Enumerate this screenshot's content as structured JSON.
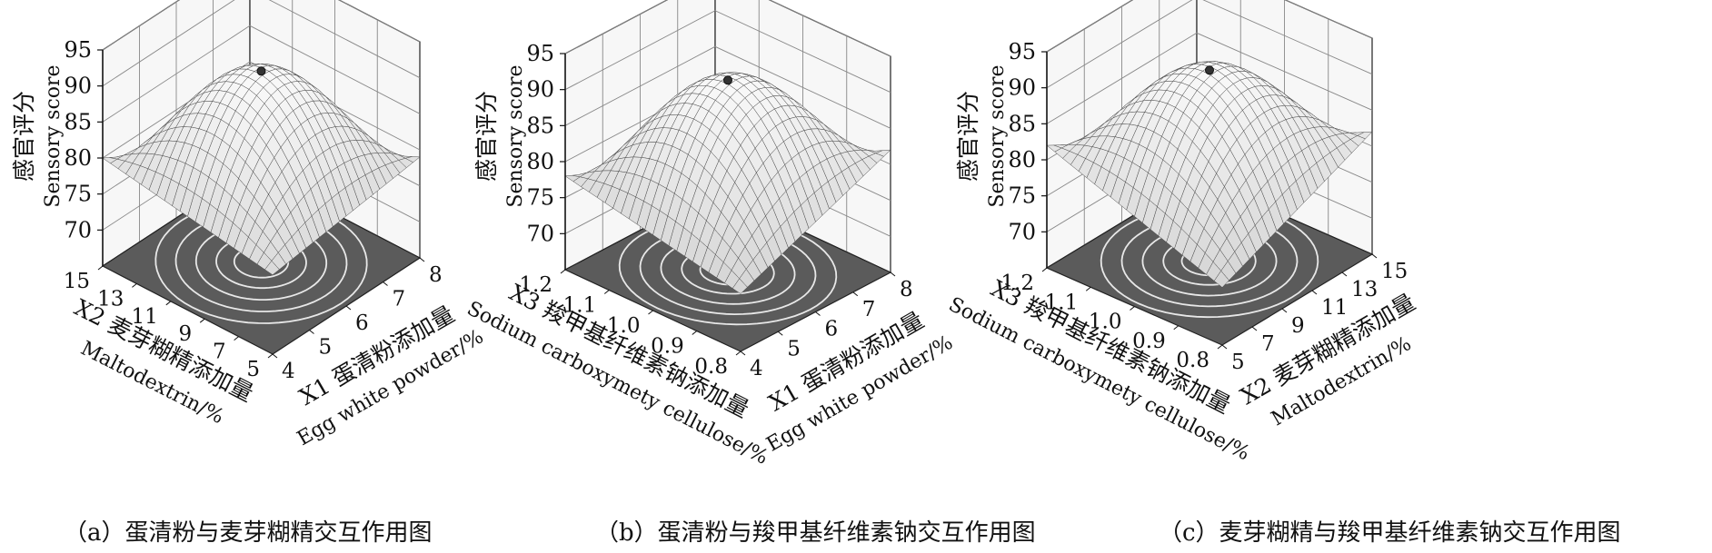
{
  "figure": {
    "captions": [
      "（a）蛋清粉与麦芽糊精交互作用图",
      "（b）蛋清粉与羧甲基纤维素钠交互作用图",
      "（c）麦芽糊精与羧甲基纤维素钠交互作用图"
    ]
  },
  "chart_data": [
    {
      "type": "surface",
      "panel": "a",
      "zlabel_cn": "感官评分",
      "zlabel_en": "Sensory score",
      "zticks": [
        70,
        75,
        80,
        85,
        90,
        95
      ],
      "zlim": [
        65,
        95
      ],
      "left_axis": {
        "var": "X2",
        "label_cn": "麦芽糊精添加量",
        "label_en": "Maltodextrin/%",
        "ticks": [
          "5",
          "7",
          "9",
          "11",
          "13",
          "15"
        ],
        "range": [
          5,
          15
        ]
      },
      "right_axis": {
        "var": "X1",
        "label_cn": "蛋清粉添加量",
        "label_en": "Egg white powder/%",
        "ticks": [
          "4",
          "5",
          "6",
          "7",
          "8"
        ],
        "range": [
          4,
          8
        ]
      },
      "peak": 92,
      "corner_values": [
        76,
        80,
        79,
        68
      ]
    },
    {
      "type": "surface",
      "panel": "b",
      "zlabel_cn": "感官评分",
      "zlabel_en": "Sensory score",
      "zticks": [
        70,
        75,
        80,
        85,
        90,
        95
      ],
      "zlim": [
        65,
        95
      ],
      "left_axis": {
        "var": "X3",
        "label_cn": "羧甲基纤维素钠添加量",
        "label_en": "Sodium carboxymety cellulose/%",
        "ticks": [
          "0.8",
          "0.9",
          "1.0",
          "1.1",
          "1.2"
        ],
        "range": [
          0.8,
          1.2
        ]
      },
      "right_axis": {
        "var": "X1",
        "label_cn": "蛋清粉添加量",
        "label_en": "Egg white powder/%",
        "ticks": [
          "4",
          "5",
          "6",
          "7",
          "8"
        ],
        "range": [
          4,
          8
        ]
      },
      "peak": 92,
      "corner_values": [
        73,
        78,
        82,
        69
      ]
    },
    {
      "type": "surface",
      "panel": "c",
      "zlabel_cn": "感官评分",
      "zlabel_en": "Sensory score",
      "zticks": [
        70,
        75,
        80,
        85,
        90,
        95
      ],
      "zlim": [
        65,
        95
      ],
      "left_axis": {
        "var": "X3",
        "label_cn": "羧甲基纤维素钠添加量",
        "label_en": "Sodium carboxymety cellulose/%",
        "ticks": [
          "0.8",
          "0.9",
          "1.0",
          "1.1",
          "1.2"
        ],
        "range": [
          0.8,
          1.2
        ]
      },
      "right_axis": {
        "var": "X2",
        "label_cn": "麦芽糊精添加量",
        "label_en": "Maltodextrin/%",
        "ticks": [
          "5",
          "7",
          "9",
          "11",
          "13",
          "15"
        ],
        "range": [
          5,
          15
        ]
      },
      "peak": 92,
      "corner_values": [
        73,
        82,
        82,
        70
      ]
    }
  ]
}
